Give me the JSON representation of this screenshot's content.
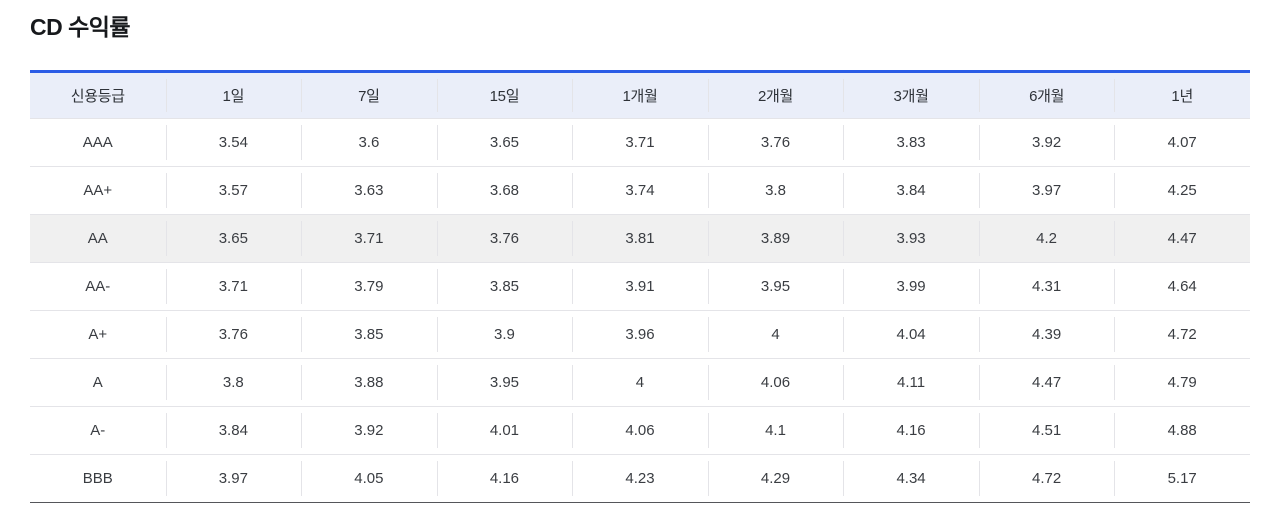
{
  "page": {
    "title": "CD 수익률"
  },
  "colors": {
    "accent_blue": "#2b5ce6",
    "header_bg": "#eaeef9",
    "highlight_row_bg": "#f0f0f0",
    "divider": "#e4e4e8",
    "bottom_border": "#55565a"
  },
  "table": {
    "columns": [
      "신용등급",
      "1일",
      "7일",
      "15일",
      "1개월",
      "2개월",
      "3개월",
      "6개월",
      "1년"
    ],
    "rows": [
      {
        "rating": "AAA",
        "highlighted": false,
        "values": [
          "3.54",
          "3.6",
          "3.65",
          "3.71",
          "3.76",
          "3.83",
          "3.92",
          "4.07"
        ]
      },
      {
        "rating": "AA+",
        "highlighted": false,
        "values": [
          "3.57",
          "3.63",
          "3.68",
          "3.74",
          "3.8",
          "3.84",
          "3.97",
          "4.25"
        ]
      },
      {
        "rating": "AA",
        "highlighted": true,
        "values": [
          "3.65",
          "3.71",
          "3.76",
          "3.81",
          "3.89",
          "3.93",
          "4.2",
          "4.47"
        ]
      },
      {
        "rating": "AA-",
        "highlighted": false,
        "values": [
          "3.71",
          "3.79",
          "3.85",
          "3.91",
          "3.95",
          "3.99",
          "4.31",
          "4.64"
        ]
      },
      {
        "rating": "A+",
        "highlighted": false,
        "values": [
          "3.76",
          "3.85",
          "3.9",
          "3.96",
          "4",
          "4.04",
          "4.39",
          "4.72"
        ]
      },
      {
        "rating": "A",
        "highlighted": false,
        "values": [
          "3.8",
          "3.88",
          "3.95",
          "4",
          "4.06",
          "4.11",
          "4.47",
          "4.79"
        ]
      },
      {
        "rating": "A-",
        "highlighted": false,
        "values": [
          "3.84",
          "3.92",
          "4.01",
          "4.06",
          "4.1",
          "4.16",
          "4.51",
          "4.88"
        ]
      },
      {
        "rating": "BBB",
        "highlighted": false,
        "values": [
          "3.97",
          "4.05",
          "4.16",
          "4.23",
          "4.29",
          "4.34",
          "4.72",
          "5.17"
        ]
      }
    ]
  }
}
